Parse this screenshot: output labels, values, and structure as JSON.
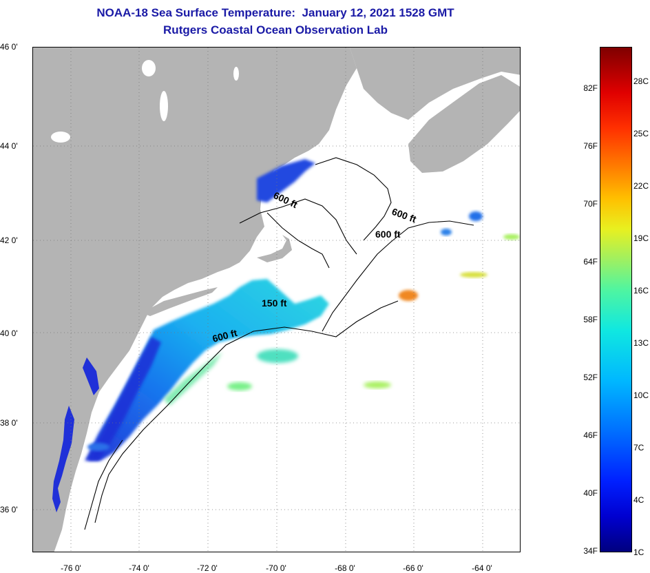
{
  "title": {
    "line1": "NOAA-18 Sea Surface Temperature:  January 12, 2021 1528 GMT",
    "line2": "Rutgers Coastal Ocean Observation Lab"
  },
  "map": {
    "lat_labels": [
      "46 0'",
      "44 0'",
      "42 0'",
      "40 0'",
      "38 0'",
      "36 0'"
    ],
    "lon_labels": [
      "-76 0'",
      "-74 0'",
      "-72 0'",
      "-70 0'",
      "-68 0'",
      "-66 0'",
      "-64 0'"
    ],
    "contour_labels": [
      "600 ft",
      "600 ft",
      "600 ft",
      "150 ft",
      "600 ft"
    ],
    "colors": {
      "land": "#b4b4b4",
      "ocean": "#ffffff",
      "contour": "#000000"
    }
  },
  "colorbar": {
    "fahrenheit": [
      "82F",
      "76F",
      "70F",
      "64F",
      "58F",
      "52F",
      "46F",
      "40F",
      "34F"
    ],
    "celsius": [
      "28C",
      "25C",
      "22C",
      "19C",
      "16C",
      "13C",
      "10C",
      "7C",
      "4C",
      "1C"
    ]
  }
}
